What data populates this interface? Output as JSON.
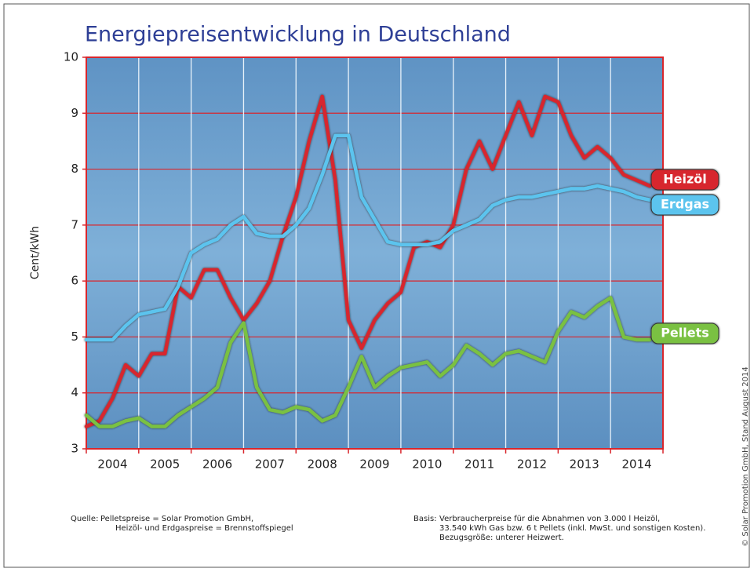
{
  "chart_data": {
    "type": "line",
    "title": "Energiepreisentwicklung in Deutschland",
    "y_label": "Cent/kWh",
    "x": [
      2004,
      2004.25,
      2004.5,
      2004.75,
      2005,
      2005.25,
      2005.5,
      2005.75,
      2006,
      2006.25,
      2006.5,
      2006.75,
      2007,
      2007.25,
      2007.5,
      2007.75,
      2008,
      2008.25,
      2008.5,
      2008.75,
      2009,
      2009.25,
      2009.5,
      2009.75,
      2010,
      2010.25,
      2010.5,
      2010.75,
      2011,
      2011.25,
      2011.5,
      2011.75,
      2012,
      2012.25,
      2012.5,
      2012.75,
      2013,
      2013.25,
      2013.5,
      2013.75,
      2014,
      2014.25,
      2014.5,
      2014.75
    ],
    "xlim": [
      2004,
      2015
    ],
    "xticks": [
      2004,
      2005,
      2006,
      2007,
      2008,
      2009,
      2010,
      2011,
      2012,
      2013,
      2014
    ],
    "ylim": [
      3,
      10
    ],
    "yticks": [
      3,
      4,
      5,
      6,
      7,
      8,
      9,
      10
    ],
    "grid": true,
    "series": [
      {
        "name": "Heizöl",
        "color": "#d7282f",
        "values": [
          3.4,
          3.5,
          3.9,
          4.5,
          4.3,
          4.7,
          4.7,
          5.9,
          5.7,
          6.2,
          6.2,
          5.7,
          5.3,
          5.6,
          6.0,
          6.8,
          7.5,
          8.5,
          9.3,
          7.8,
          5.3,
          4.8,
          5.3,
          5.6,
          5.8,
          6.6,
          6.7,
          6.6,
          7.0,
          8.0,
          8.5,
          8.0,
          8.6,
          9.2,
          8.6,
          9.3,
          9.2,
          8.6,
          8.2,
          8.4,
          8.2,
          7.9,
          7.8,
          7.7
        ]
      },
      {
        "name": "Erdgas",
        "color": "#5bc4ee",
        "values": [
          4.95,
          4.95,
          4.95,
          5.2,
          5.4,
          5.45,
          5.5,
          5.9,
          6.5,
          6.65,
          6.75,
          7.0,
          7.15,
          6.85,
          6.8,
          6.8,
          7.0,
          7.3,
          7.9,
          8.6,
          8.6,
          7.5,
          7.1,
          6.7,
          6.65,
          6.65,
          6.65,
          6.7,
          6.9,
          7.0,
          7.1,
          7.35,
          7.45,
          7.5,
          7.5,
          7.55,
          7.6,
          7.65,
          7.65,
          7.7,
          7.65,
          7.6,
          7.5,
          7.45
        ]
      },
      {
        "name": "Pellets",
        "color": "#7ac142",
        "values": [
          3.6,
          3.4,
          3.4,
          3.5,
          3.55,
          3.4,
          3.4,
          3.6,
          3.75,
          3.9,
          4.1,
          4.9,
          5.25,
          4.1,
          3.7,
          3.65,
          3.75,
          3.7,
          3.5,
          3.6,
          4.1,
          4.65,
          4.1,
          4.3,
          4.45,
          4.5,
          4.55,
          4.3,
          4.5,
          4.85,
          4.7,
          4.5,
          4.7,
          4.75,
          4.65,
          4.55,
          5.1,
          5.45,
          5.35,
          5.55,
          5.7,
          5.0,
          4.95,
          4.95
        ]
      }
    ],
    "source": {
      "label": "Quelle:",
      "lines": [
        "Pelletspreise = Solar Promotion GmbH,",
        "Heizöl- und Erdgaspreise = Brennstoffspiegel"
      ]
    },
    "basis": {
      "label": "Basis:",
      "lines": [
        "Verbraucherpreise für die Abnahmen von 3.000 l Heizöl,",
        "33.540 kWh Gas bzw. 6 t Pellets (inkl. MwSt. und sonstigen Kosten).",
        "Bezugsgröße: unterer Heizwert."
      ]
    },
    "copyright": "© Solar Promotion GmbH, Stand August 2014"
  }
}
